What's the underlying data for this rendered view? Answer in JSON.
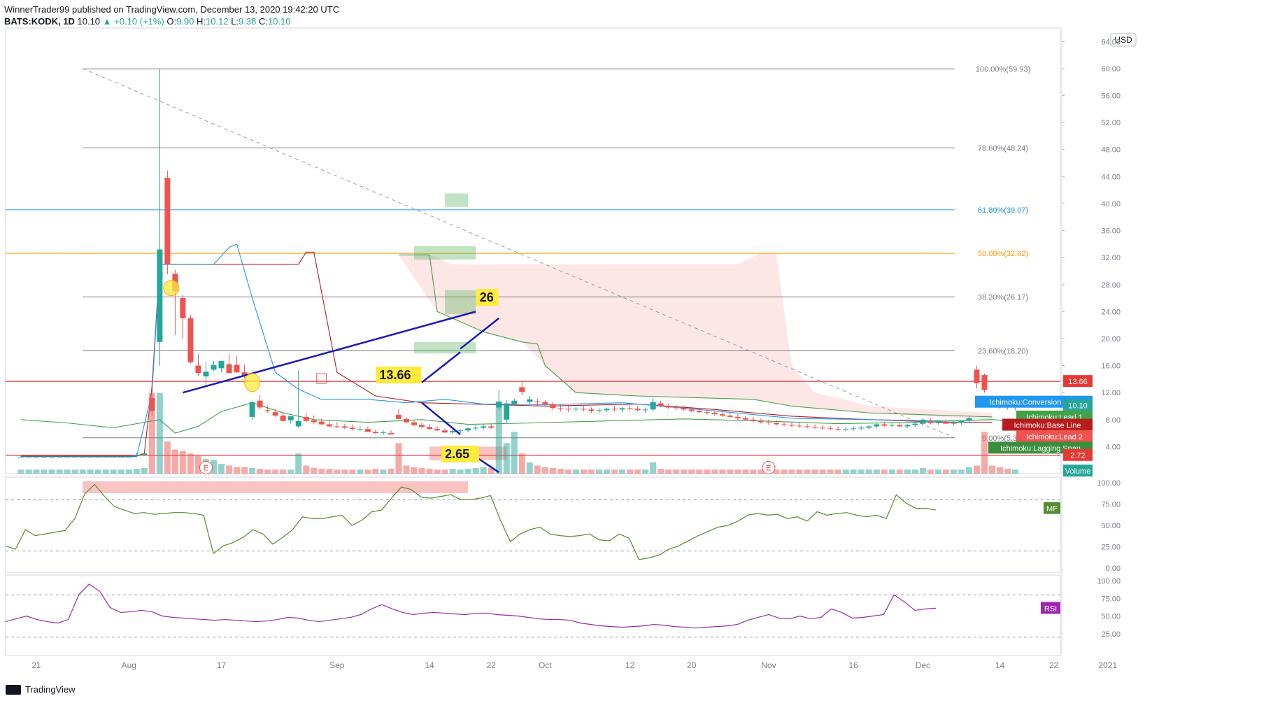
{
  "header": {
    "publisher": "WinnerTrader99 published on TradingView.com, December 13, 2020 19:42:20 UTC",
    "symbol": "BATS:KODK, 1D",
    "last": "10.10",
    "change": "+0.10 (+1%)",
    "o_label": "O:",
    "o": "9.90",
    "h_label": "H:",
    "h": "10.12",
    "l_label": "L:",
    "l": "9.38",
    "c_label": "C:",
    "c": "10.10"
  },
  "footer": {
    "brand": "TradingView"
  },
  "chart_data": {
    "type": "candlestick",
    "currency": "USD",
    "x_ticks": [
      "21",
      "Aug",
      "17",
      "Sep",
      "14",
      "22",
      "Oct",
      "12",
      "20",
      "Nov",
      "16",
      "Dec",
      "14",
      "22",
      "2021"
    ],
    "y_ticks": [
      "64.00",
      "60.00",
      "56.00",
      "52.00",
      "48.00",
      "44.00",
      "40.00",
      "36.00",
      "32.00",
      "28.00",
      "24.00",
      "20.00",
      "16.00",
      "12.00",
      "8.00",
      "4.00"
    ],
    "ylim": [
      0,
      66
    ],
    "ohlc": [
      [
        2.5,
        2.6,
        2.4,
        2.5
      ],
      [
        2.5,
        2.6,
        2.4,
        2.5
      ],
      [
        2.5,
        2.6,
        2.4,
        2.5
      ],
      [
        2.5,
        2.6,
        2.4,
        2.5
      ],
      [
        2.5,
        2.6,
        2.4,
        2.5
      ],
      [
        2.5,
        2.6,
        2.4,
        2.5
      ],
      [
        2.5,
        2.6,
        2.4,
        2.5
      ],
      [
        2.5,
        2.6,
        2.4,
        2.5
      ],
      [
        2.5,
        2.6,
        2.4,
        2.5
      ],
      [
        2.5,
        2.6,
        2.4,
        2.5
      ],
      [
        2.5,
        2.6,
        2.4,
        2.5
      ],
      [
        2.5,
        2.6,
        2.4,
        2.5
      ],
      [
        2.5,
        2.6,
        2.4,
        2.5
      ],
      [
        2.5,
        2.6,
        2.4,
        2.5
      ],
      [
        2.5,
        2.6,
        2.4,
        2.5
      ],
      [
        2.6,
        3.0,
        2.5,
        2.8
      ],
      [
        2.8,
        3.1,
        2.7,
        3.0
      ],
      [
        11.2,
        13.8,
        8.5,
        9.3
      ],
      [
        19.5,
        60.0,
        16.0,
        33.2
      ],
      [
        43.8,
        44.9,
        29.5,
        31.0
      ],
      [
        29.6,
        30.2,
        20.5,
        27.0
      ],
      [
        26.0,
        26.5,
        20.0,
        23.0
      ],
      [
        23.0,
        23.5,
        16.3,
        16.5
      ],
      [
        16.0,
        17.7,
        14.4,
        14.9
      ],
      [
        14.4,
        16.5,
        12.8,
        15.1
      ],
      [
        15.4,
        16.7,
        15.2,
        16.1
      ],
      [
        15.6,
        16.7,
        15.0,
        16.7
      ],
      [
        16.2,
        17.7,
        14.8,
        14.9
      ],
      [
        16.1,
        17.4,
        14.9,
        15.0
      ],
      [
        15.0,
        16.2,
        14.1,
        14.5
      ],
      [
        8.4,
        10.7,
        8.0,
        10.6
      ],
      [
        10.8,
        11.6,
        9.5,
        9.8
      ],
      [
        9.4,
        10.1,
        9.0,
        9.3
      ],
      [
        9.1,
        9.6,
        8.4,
        8.6
      ],
      [
        8.6,
        9.1,
        7.7,
        7.8
      ],
      [
        7.9,
        8.5,
        7.4,
        8.5
      ],
      [
        7.0,
        15.3,
        6.8,
        7.8
      ],
      [
        8.4,
        9.0,
        7.6,
        7.8
      ],
      [
        7.9,
        8.6,
        7.4,
        7.6
      ],
      [
        7.7,
        8.1,
        7.2,
        7.3
      ],
      [
        7.3,
        7.8,
        6.9,
        7.0
      ],
      [
        7.0,
        7.6,
        6.7,
        6.9
      ],
      [
        7.0,
        7.4,
        6.6,
        6.8
      ],
      [
        6.8,
        7.3,
        6.4,
        6.6
      ],
      [
        6.6,
        7.0,
        6.3,
        6.6
      ],
      [
        6.6,
        7.0,
        6.1,
        6.2
      ],
      [
        6.2,
        6.6,
        5.9,
        6.0
      ],
      [
        6.0,
        6.4,
        5.7,
        6.1
      ],
      [
        6.0,
        6.4,
        5.8,
        5.8
      ],
      [
        8.7,
        9.6,
        8.1,
        8.1
      ],
      [
        8.1,
        8.4,
        7.5,
        7.6
      ],
      [
        7.6,
        7.9,
        7.0,
        7.2
      ],
      [
        7.2,
        7.6,
        6.8,
        6.9
      ],
      [
        6.9,
        7.3,
        6.5,
        6.6
      ],
      [
        6.6,
        7.0,
        6.3,
        6.4
      ],
      [
        6.4,
        6.7,
        6.0,
        6.1
      ],
      [
        6.1,
        6.5,
        5.9,
        6.3
      ],
      [
        6.3,
        6.6,
        6.0,
        6.4
      ],
      [
        6.4,
        6.8,
        6.1,
        6.7
      ],
      [
        6.7,
        7.2,
        6.3,
        6.8
      ],
      [
        6.8,
        7.3,
        6.5,
        7.0
      ],
      [
        7.0,
        7.3,
        6.6,
        6.8
      ],
      [
        9.8,
        12.4,
        9.4,
        10.6
      ],
      [
        8.0,
        10.9,
        7.5,
        10.4
      ],
      [
        10.3,
        11.1,
        10.0,
        10.8
      ],
      [
        12.8,
        13.7,
        11.6,
        12.1
      ],
      [
        10.6,
        11.5,
        10.2,
        11.0
      ],
      [
        10.7,
        11.1,
        10.1,
        10.6
      ],
      [
        10.6,
        10.9,
        10.0,
        10.3
      ],
      [
        10.3,
        10.6,
        9.4,
        9.7
      ],
      [
        9.7,
        10.2,
        9.2,
        9.6
      ],
      [
        9.6,
        10.0,
        9.1,
        9.5
      ],
      [
        9.5,
        9.9,
        9.1,
        9.6
      ],
      [
        9.6,
        10.0,
        9.2,
        9.5
      ],
      [
        9.5,
        9.8,
        9.0,
        9.3
      ],
      [
        9.3,
        9.7,
        8.9,
        9.4
      ],
      [
        9.4,
        9.8,
        9.1,
        9.6
      ],
      [
        9.6,
        10.0,
        9.2,
        9.5
      ],
      [
        9.5,
        9.9,
        9.1,
        9.7
      ],
      [
        9.7,
        10.1,
        9.3,
        9.6
      ],
      [
        9.6,
        10.0,
        9.2,
        9.4
      ],
      [
        9.4,
        9.8,
        9.0,
        9.5
      ],
      [
        9.5,
        11.2,
        9.2,
        10.6
      ],
      [
        10.4,
        10.8,
        9.8,
        10.0
      ],
      [
        10.0,
        10.4,
        9.6,
        9.8
      ],
      [
        9.8,
        10.2,
        9.4,
        9.7
      ],
      [
        9.7,
        10.1,
        9.3,
        9.5
      ],
      [
        9.5,
        9.9,
        9.1,
        9.3
      ],
      [
        9.3,
        9.7,
        8.9,
        9.1
      ],
      [
        9.1,
        9.5,
        8.7,
        9.0
      ],
      [
        9.0,
        9.4,
        8.6,
        8.8
      ],
      [
        8.8,
        9.2,
        8.4,
        8.6
      ],
      [
        8.6,
        9.0,
        8.2,
        8.4
      ],
      [
        8.4,
        8.8,
        8.0,
        8.2
      ],
      [
        8.2,
        8.6,
        7.8,
        8.0
      ],
      [
        8.0,
        8.4,
        7.6,
        7.8
      ],
      [
        7.8,
        8.2,
        7.4,
        7.6
      ],
      [
        7.6,
        8.0,
        7.2,
        7.5
      ],
      [
        7.5,
        7.9,
        7.1,
        7.3
      ],
      [
        7.3,
        7.7,
        7.0,
        7.2
      ],
      [
        7.2,
        7.6,
        6.9,
        7.1
      ],
      [
        7.1,
        7.5,
        6.8,
        7.0
      ],
      [
        7.0,
        7.4,
        6.7,
        6.9
      ],
      [
        6.9,
        7.3,
        6.6,
        6.8
      ],
      [
        6.8,
        7.2,
        6.5,
        6.7
      ],
      [
        6.7,
        7.1,
        6.4,
        6.6
      ],
      [
        6.6,
        7.0,
        6.3,
        6.5
      ],
      [
        6.5,
        6.9,
        6.3,
        6.6
      ],
      [
        6.6,
        7.0,
        6.3,
        6.7
      ],
      [
        6.7,
        7.1,
        6.4,
        6.8
      ],
      [
        6.8,
        7.2,
        6.5,
        7.0
      ],
      [
        7.0,
        7.5,
        6.7,
        7.3
      ],
      [
        7.3,
        7.7,
        6.9,
        7.1
      ],
      [
        7.1,
        7.5,
        6.8,
        7.2
      ],
      [
        7.2,
        7.6,
        6.9,
        7.0
      ],
      [
        7.0,
        7.4,
        6.7,
        7.2
      ],
      [
        7.2,
        7.6,
        6.9,
        7.4
      ],
      [
        7.4,
        8.2,
        7.1,
        8.0
      ],
      [
        7.8,
        8.2,
        7.3,
        7.5
      ],
      [
        7.5,
        7.9,
        7.2,
        7.6
      ],
      [
        7.6,
        8.0,
        7.3,
        7.4
      ],
      [
        7.4,
        7.8,
        7.1,
        7.5
      ],
      [
        7.5,
        7.9,
        7.2,
        7.8
      ],
      [
        7.8,
        8.5,
        7.5,
        8.2
      ],
      [
        15.4,
        16.0,
        12.6,
        13.4
      ],
      [
        14.6,
        14.8,
        12.0,
        12.4
      ],
      [
        10.6,
        11.2,
        9.8,
        10.0
      ],
      [
        10.0,
        10.5,
        9.6,
        9.9
      ],
      [
        9.9,
        10.3,
        9.5,
        9.8
      ],
      [
        9.9,
        10.12,
        9.38,
        10.1
      ]
    ],
    "volume_relative": [
      0.05,
      0.05,
      0.05,
      0.05,
      0.05,
      0.05,
      0.05,
      0.05,
      0.05,
      0.05,
      0.05,
      0.05,
      0.05,
      0.05,
      0.05,
      0.06,
      0.07,
      1.0,
      1.0,
      0.4,
      0.3,
      0.28,
      0.25,
      0.22,
      0.18,
      0.17,
      0.12,
      0.1,
      0.08,
      0.08,
      0.07,
      0.06,
      0.05,
      0.05,
      0.05,
      0.05,
      0.25,
      0.1,
      0.07,
      0.06,
      0.06,
      0.05,
      0.05,
      0.05,
      0.05,
      0.05,
      0.06,
      0.05,
      0.06,
      0.38,
      0.1,
      0.08,
      0.07,
      0.06,
      0.05,
      0.05,
      0.06,
      0.05,
      0.06,
      0.07,
      0.08,
      0.07,
      0.9,
      0.38,
      0.52,
      0.25,
      0.14,
      0.1,
      0.08,
      0.07,
      0.06,
      0.05,
      0.05,
      0.05,
      0.05,
      0.05,
      0.05,
      0.05,
      0.05,
      0.05,
      0.05,
      0.05,
      0.14,
      0.06,
      0.05,
      0.05,
      0.05,
      0.05,
      0.05,
      0.05,
      0.05,
      0.05,
      0.05,
      0.05,
      0.05,
      0.05,
      0.05,
      0.05,
      0.05,
      0.05,
      0.05,
      0.05,
      0.05,
      0.05,
      0.05,
      0.05,
      0.05,
      0.05,
      0.05,
      0.05,
      0.05,
      0.05,
      0.05,
      0.05,
      0.05,
      0.05,
      0.05,
      0.07,
      0.05,
      0.05,
      0.05,
      0.05,
      0.05,
      0.08,
      0.1,
      0.52,
      0.1,
      0.08,
      0.06,
      0.05
    ],
    "fib_levels": [
      {
        "label": "100.00%(59.93)",
        "value": 59.93,
        "color": "#787b86"
      },
      {
        "label": "78.60%(48.24)",
        "value": 48.24,
        "color": "#787b86"
      },
      {
        "label": "61.80%(39.07)",
        "value": 39.07,
        "color": "#2196f3"
      },
      {
        "label": "50.00%(32.62)",
        "value": 32.62,
        "color": "#ff9800"
      },
      {
        "label": "38.20%(26.17)",
        "value": 26.17,
        "color": "#787b86"
      },
      {
        "label": "23.60%(18.20)",
        "value": 18.2,
        "color": "#787b86"
      },
      {
        "label": "0.00%(5.31)",
        "value": 5.31,
        "color": "#787b86"
      }
    ],
    "horizontal_lines": [
      {
        "value": 13.66,
        "color": "#e53935"
      },
      {
        "value": 2.72,
        "color": "#e53935"
      }
    ],
    "annotations": [
      {
        "text": "26",
        "value": 26
      },
      {
        "text": "13.66",
        "value": 13.66
      },
      {
        "text": "2.65",
        "value": 2.65
      }
    ],
    "price_labels": [
      {
        "text": "13.66",
        "value": 13.66,
        "color": "#e53935"
      },
      {
        "text": "Ichimoku:Conversion Line",
        "value": 10.6,
        "color": "#2196f3"
      },
      {
        "text": "10.10",
        "value": 10.1,
        "color": "#26a69a"
      },
      {
        "text": "Ichimoku:Lead 1",
        "value": 8.4,
        "color": "#43a047"
      },
      {
        "text": "Ichimoku:Base Line",
        "value": 7.2,
        "color": "#b71c1c"
      },
      {
        "text": "Ichimoku:Lead 2",
        "value": 5.5,
        "color": "#ef5350"
      },
      {
        "text": "Ichimoku:Lagging Span",
        "value": 3.8,
        "color": "#388e3c"
      },
      {
        "text": "2.72",
        "value": 2.72,
        "color": "#e53935"
      },
      {
        "text": "Volume",
        "value": 0.4,
        "color": "#26a69a"
      }
    ],
    "mfi": {
      "label": "MF",
      "ticks": [
        "100.00",
        "75.00",
        "50.00",
        "25.00",
        "0.00"
      ],
      "bands": [
        80,
        20
      ],
      "color": "#558b2f",
      "values": [
        26,
        22,
        45,
        38,
        40,
        42,
        44,
        58,
        87,
        98,
        84,
        72,
        68,
        64,
        65,
        63,
        64,
        65,
        65,
        64,
        62,
        17,
        26,
        30,
        36,
        45,
        40,
        28,
        36,
        45,
        60,
        58,
        58,
        60,
        62,
        50,
        56,
        66,
        68,
        82,
        95,
        92,
        83,
        82,
        84,
        86,
        80,
        80,
        82,
        85,
        56,
        31,
        40,
        45,
        48,
        40,
        38,
        37,
        38,
        40,
        33,
        32,
        40,
        35,
        10,
        12,
        15,
        22,
        26,
        32,
        38,
        43,
        48,
        50,
        55,
        62,
        64,
        62,
        63,
        58,
        60,
        55,
        66,
        62,
        64,
        65,
        62,
        60,
        62,
        58,
        86,
        76,
        70,
        70,
        68
      ]
    },
    "rsi": {
      "label": "RSI",
      "ticks": [
        "100.00",
        "75.00",
        "50.00",
        "25.00"
      ],
      "bands": [
        80,
        20
      ],
      "color": "#9c27b0",
      "values": [
        42,
        46,
        50,
        45,
        42,
        40,
        45,
        80,
        95,
        85,
        62,
        55,
        56,
        58,
        56,
        50,
        48,
        47,
        46,
        45,
        44,
        45,
        44,
        43,
        42,
        43,
        45,
        48,
        47,
        44,
        42,
        44,
        46,
        48,
        52,
        60,
        66,
        60,
        55,
        52,
        54,
        55,
        54,
        53,
        52,
        54,
        54,
        52,
        51,
        50,
        48,
        46,
        45,
        45,
        44,
        40,
        38,
        36,
        35,
        34,
        35,
        36,
        38,
        37,
        35,
        34,
        33,
        34,
        35,
        36,
        38,
        44,
        48,
        52,
        47,
        46,
        50,
        46,
        48,
        60,
        55,
        47,
        48,
        50,
        52,
        80,
        70,
        58,
        60,
        61
      ]
    }
  }
}
